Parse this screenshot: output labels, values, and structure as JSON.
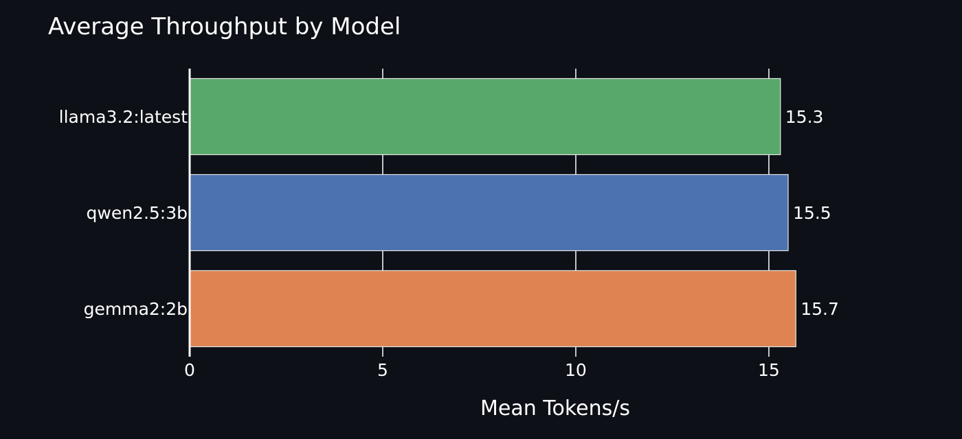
{
  "chart_data": {
    "type": "bar",
    "orientation": "horizontal",
    "title": "Average Throughput by Model",
    "xlabel": "Mean Tokens/s",
    "ylabel": "",
    "categories": [
      "llama3.2:latest",
      "qwen2.5:3b",
      "gemma2:2b"
    ],
    "values": [
      15.3,
      15.5,
      15.7
    ],
    "value_labels": [
      "15.3",
      "15.5",
      "15.7"
    ],
    "colors": [
      "#58a86b",
      "#4c72b0",
      "#dd8452"
    ],
    "xlim": [
      0,
      20.5
    ],
    "xticks": [
      0,
      5,
      10,
      15
    ],
    "xtick_labels": [
      "0",
      "5",
      "10",
      "15"
    ],
    "grid": true,
    "legend": "none"
  }
}
